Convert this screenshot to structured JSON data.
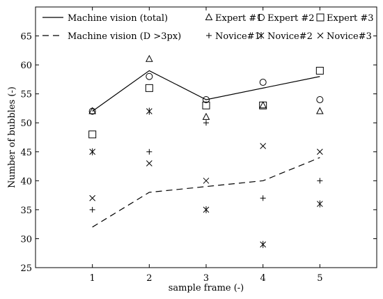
{
  "chart_data": {
    "type": "scatter",
    "xlabel": "sample frame (-)",
    "ylabel": "Number of bubbles (-)",
    "xlim": [
      0,
      6
    ],
    "ylim": [
      25,
      70
    ],
    "x_ticks": [
      "1",
      "2",
      "3",
      "4",
      "5"
    ],
    "y_ticks": [
      "25",
      "30",
      "35",
      "40",
      "45",
      "50",
      "55",
      "60",
      "65"
    ],
    "legend_position": "top",
    "grid": false,
    "lines": [
      {
        "name": "Machine vision (total)",
        "style": "solid",
        "x": [
          1,
          2,
          3,
          4,
          5
        ],
        "y": [
          52,
          59,
          54,
          56,
          58
        ]
      },
      {
        "name": "Machine vision (D >3px)",
        "style": "dashed",
        "x": [
          1,
          2,
          3,
          4,
          5
        ],
        "y": [
          32,
          38,
          39,
          40,
          44
        ]
      }
    ],
    "series": [
      {
        "name": "Expert #1",
        "marker": "triangle",
        "x": [
          1,
          2,
          3,
          4,
          5
        ],
        "y": [
          52,
          61,
          51,
          53,
          52
        ]
      },
      {
        "name": "Expert #2",
        "marker": "circle",
        "x": [
          1,
          2,
          3,
          4,
          5
        ],
        "y": [
          52,
          58,
          54,
          57,
          54
        ]
      },
      {
        "name": "Expert #3",
        "marker": "square",
        "x": [
          1,
          2,
          3,
          4,
          5
        ],
        "y": [
          48,
          56,
          53,
          53,
          59
        ]
      },
      {
        "name": "Novice#1",
        "marker": "plus",
        "x": [
          1,
          2,
          3,
          4,
          5
        ],
        "y": [
          35,
          45,
          50,
          37,
          40
        ]
      },
      {
        "name": "Novice#2",
        "marker": "asterisk",
        "x": [
          1,
          2,
          3,
          4,
          5
        ],
        "y": [
          45,
          52,
          35,
          29,
          36
        ]
      },
      {
        "name": "Novice#3",
        "marker": "cross",
        "x": [
          1,
          2,
          3,
          4,
          5
        ],
        "y": [
          37,
          43,
          40,
          46,
          45
        ]
      }
    ]
  }
}
